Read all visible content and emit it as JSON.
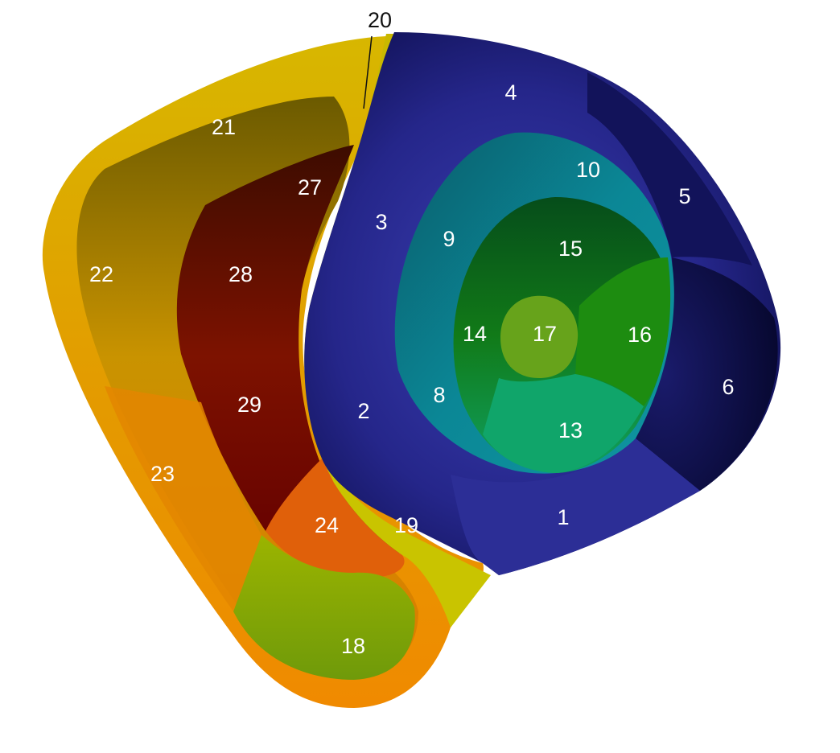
{
  "segments": [
    {
      "id": "1",
      "label": "1"
    },
    {
      "id": "2",
      "label": "2"
    },
    {
      "id": "3",
      "label": "3"
    },
    {
      "id": "4",
      "label": "4"
    },
    {
      "id": "5",
      "label": "5"
    },
    {
      "id": "6",
      "label": "6"
    },
    {
      "id": "8",
      "label": "8"
    },
    {
      "id": "9",
      "label": "9"
    },
    {
      "id": "10",
      "label": "10"
    },
    {
      "id": "13",
      "label": "13"
    },
    {
      "id": "14",
      "label": "14"
    },
    {
      "id": "15",
      "label": "15"
    },
    {
      "id": "16",
      "label": "16"
    },
    {
      "id": "17",
      "label": "17"
    },
    {
      "id": "18",
      "label": "18"
    },
    {
      "id": "19",
      "label": "19"
    },
    {
      "id": "20",
      "label": "20"
    },
    {
      "id": "21",
      "label": "21"
    },
    {
      "id": "22",
      "label": "22"
    },
    {
      "id": "23",
      "label": "23"
    },
    {
      "id": "24",
      "label": "24"
    },
    {
      "id": "27",
      "label": "27"
    },
    {
      "id": "28",
      "label": "28"
    },
    {
      "id": "29",
      "label": "29"
    }
  ],
  "colors": {
    "ventricle_outer": "#2a2c8a",
    "ventricle_dark": "#0c0d4a",
    "ring_teal": "#0b7f8a",
    "inner_green": "#0a6b2a",
    "apex_green": "#66a31a",
    "atrium_yellow": "#d1b300",
    "atrium_orange": "#e38a00",
    "atrium_red": "#6e0000"
  }
}
